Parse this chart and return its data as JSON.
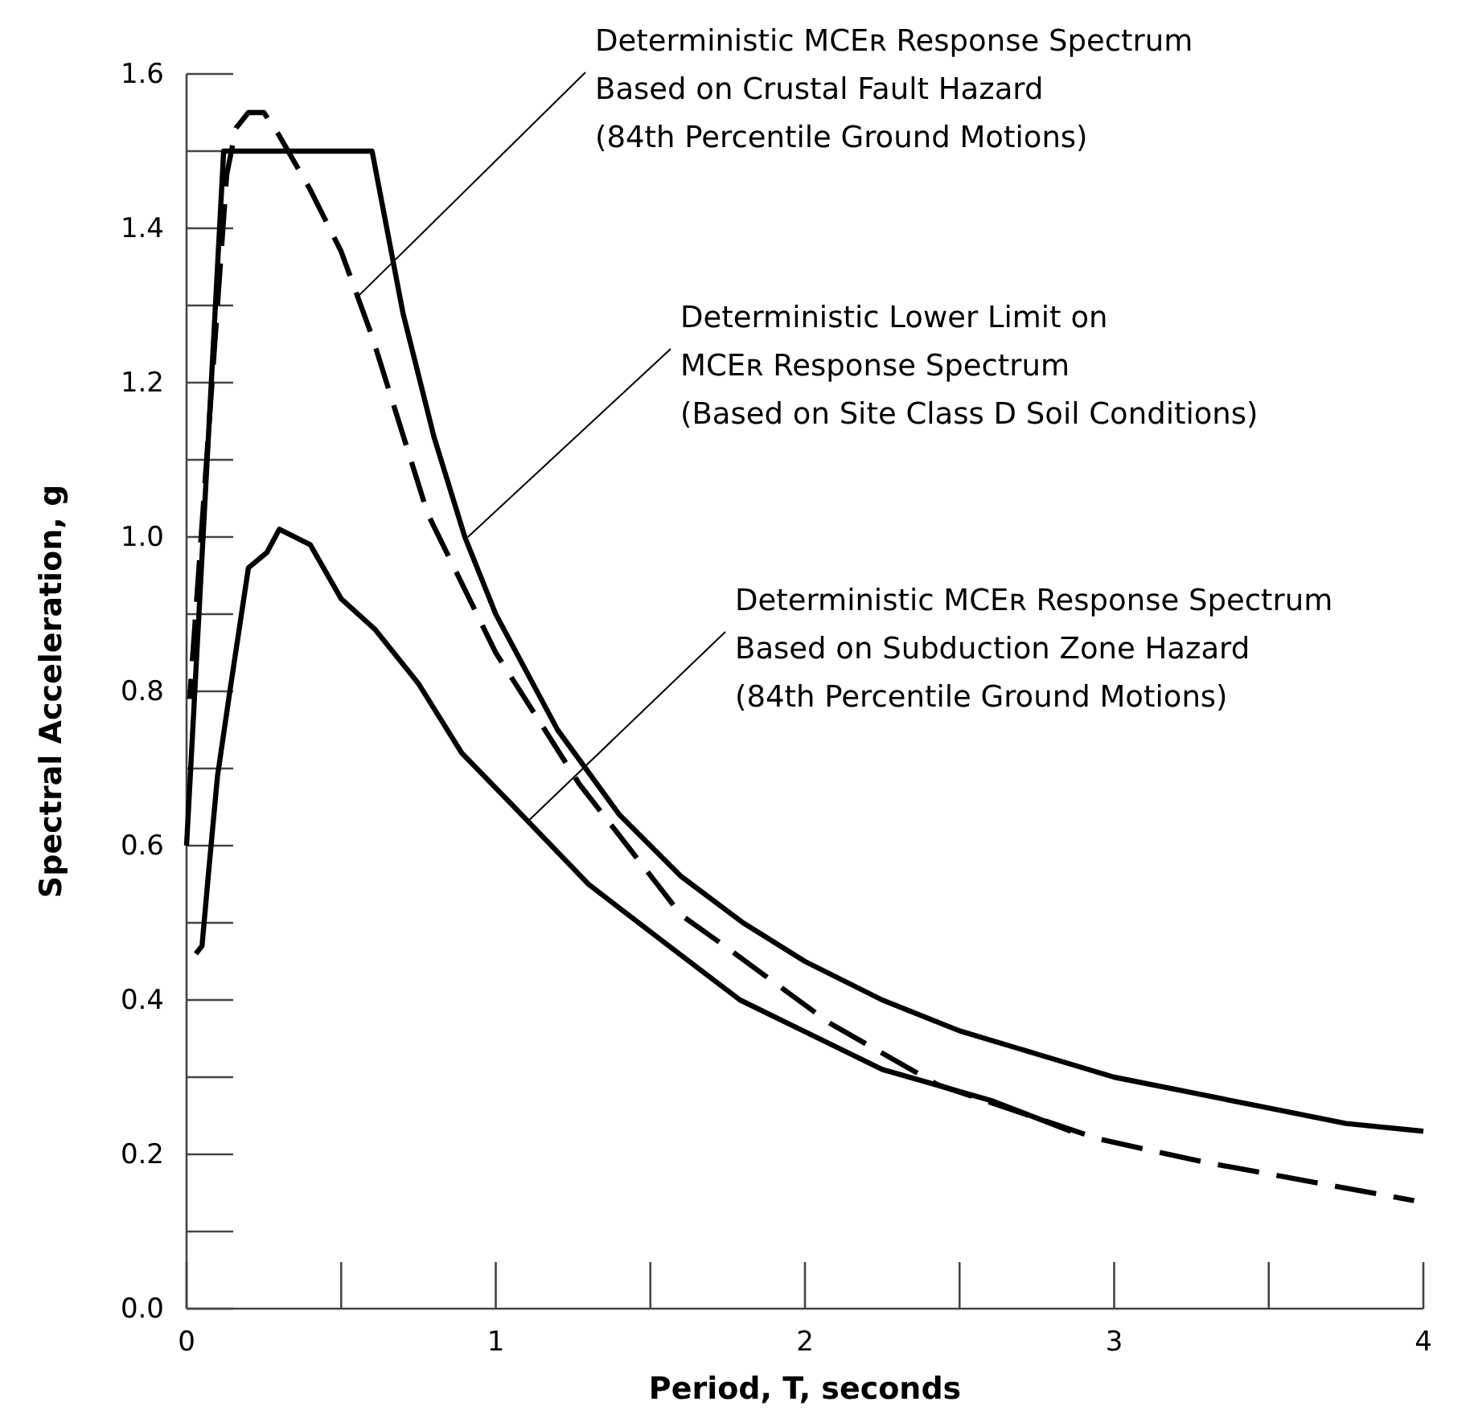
{
  "chart_data": {
    "type": "line",
    "xlabel": "Period, T, seconds",
    "ylabel": "Spectral Acceleration, g",
    "xlim": [
      0,
      4
    ],
    "ylim": [
      0,
      1.6
    ],
    "xticks": [
      0,
      1,
      2,
      3,
      4
    ],
    "yticks": [
      {
        "value": 0,
        "label": "0.0"
      },
      {
        "value": 0.2,
        "label": "0.2"
      },
      {
        "value": 0.4,
        "label": "0.4"
      },
      {
        "value": 0.6,
        "label": "0.6"
      },
      {
        "value": 0.8,
        "label": "0.8"
      },
      {
        "value": 1.0,
        "label": "1.0"
      },
      {
        "value": 1.2,
        "label": "1.2"
      },
      {
        "value": 1.4,
        "label": "1.4"
      },
      {
        "value": 1.6,
        "label": "1.6"
      }
    ],
    "grid": false,
    "marker": "none",
    "series": [
      {
        "color": "#000000",
        "line_style": "solid",
        "x": [
          0,
          0.12,
          0.6,
          0.7,
          0.8,
          0.9,
          1.0,
          1.2,
          1.4,
          1.6,
          1.8,
          2.0,
          2.25,
          2.5,
          2.75,
          3.0,
          3.25,
          3.5,
          3.75,
          4.0
        ],
        "values": [
          0.6,
          1.5,
          1.5,
          1.29,
          1.13,
          1.0,
          0.9,
          0.75,
          0.64,
          0.56,
          0.5,
          0.45,
          0.4,
          0.36,
          0.33,
          0.3,
          0.28,
          0.26,
          0.24,
          0.23
        ]
      },
      {
        "color": "#000000",
        "line_style": "dashed",
        "x": [
          0.01,
          0.13,
          0.16,
          0.2,
          0.25,
          0.3,
          0.4,
          0.5,
          0.6,
          0.78,
          1.0,
          1.27,
          1.6,
          1.74,
          2.08,
          2.43,
          2.95,
          3.29,
          3.97
        ],
        "values": [
          0.79,
          1.47,
          1.53,
          1.55,
          1.55,
          1.52,
          1.45,
          1.37,
          1.26,
          1.03,
          0.85,
          0.68,
          0.51,
          0.47,
          0.37,
          0.29,
          0.22,
          0.19,
          0.14
        ]
      },
      {
        "color": "#000000",
        "line_style": "solid",
        "x": [
          0.03,
          0.05,
          0.07,
          0.1,
          0.14,
          0.2,
          0.26,
          0.3,
          0.4,
          0.5,
          0.61,
          0.75,
          0.89,
          1.06,
          1.3,
          1.56,
          1.79,
          2.25,
          2.6,
          2.86
        ],
        "values": [
          0.46,
          0.47,
          0.56,
          0.69,
          0.8,
          0.96,
          0.98,
          1.01,
          0.99,
          0.92,
          0.88,
          0.81,
          0.72,
          0.65,
          0.55,
          0.47,
          0.4,
          0.31,
          0.27,
          0.23
        ]
      }
    ],
    "annotations": [
      {
        "text": "Deterministic MCEʀ Response Spectrum\nBased on Crustal Fault Hazard\n(84th Percentile Ground Motions)",
        "x": 0.55,
        "y": 1.31
      },
      {
        "text": "Deterministic Lower Limit on\nMCEʀ Response Spectrum\n(Based on Site Class D Soil Conditions)",
        "x": 0.91,
        "y": 1.0
      },
      {
        "text": "Deterministic MCEʀ Response Spectrum\nBased on Subduction Zone Hazard\n(84th Percentile Ground Motions)",
        "x": 1.1,
        "y": 0.63
      }
    ]
  }
}
